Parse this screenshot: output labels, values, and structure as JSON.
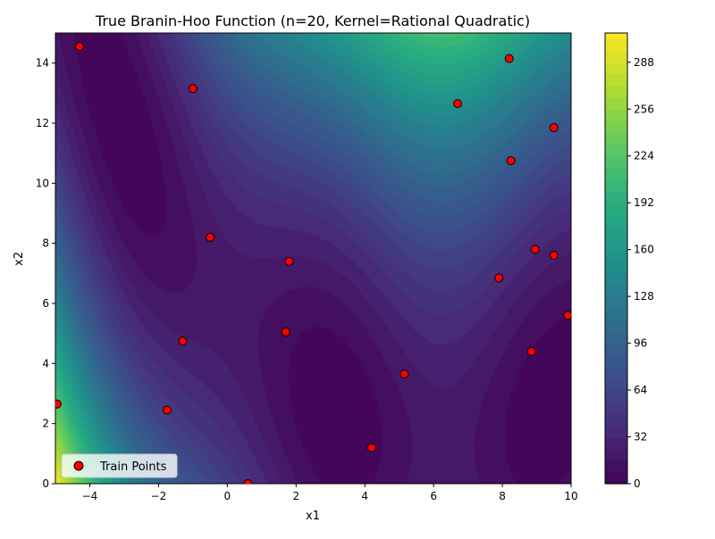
{
  "chart_data": {
    "type": "contour",
    "title": "True Branin-Hoo Function (n=20, Kernel=Rational Quadratic)",
    "xlabel": "x1",
    "ylabel": "x2",
    "xlim": [
      -5,
      10
    ],
    "ylim": [
      0,
      15
    ],
    "x_ticks": [
      -4,
      -2,
      0,
      2,
      4,
      6,
      8,
      10
    ],
    "y_ticks": [
      0,
      2,
      4,
      6,
      8,
      10,
      12,
      14
    ],
    "colorbar": {
      "colormap": "viridis",
      "range": [
        0,
        308
      ],
      "ticks": [
        0,
        32,
        64,
        96,
        128,
        160,
        192,
        224,
        256,
        288
      ]
    },
    "grid": false,
    "legend": {
      "placement": "lower-left",
      "entries": [
        "Train Points"
      ]
    },
    "series": [
      {
        "name": "Train Points",
        "marker_color": "#ff0000",
        "edge_color": "#000000",
        "points": [
          {
            "x": -4.3,
            "y": 14.55
          },
          {
            "x": -1.0,
            "y": 13.15
          },
          {
            "x": 8.2,
            "y": 14.15
          },
          {
            "x": 6.7,
            "y": 12.65
          },
          {
            "x": 9.5,
            "y": 11.85
          },
          {
            "x": 8.25,
            "y": 10.75
          },
          {
            "x": -0.5,
            "y": 8.2
          },
          {
            "x": 1.8,
            "y": 7.4
          },
          {
            "x": 8.95,
            "y": 7.8
          },
          {
            "x": 9.5,
            "y": 7.6
          },
          {
            "x": 7.9,
            "y": 6.85
          },
          {
            "x": 9.9,
            "y": 5.6
          },
          {
            "x": -1.3,
            "y": 4.75
          },
          {
            "x": 1.7,
            "y": 5.05
          },
          {
            "x": 8.85,
            "y": 4.4
          },
          {
            "x": 5.15,
            "y": 3.65
          },
          {
            "x": -4.95,
            "y": 2.65
          },
          {
            "x": -1.75,
            "y": 2.45
          },
          {
            "x": 4.2,
            "y": 1.2
          },
          {
            "x": 0.6,
            "y": 0.0
          }
        ]
      }
    ]
  }
}
